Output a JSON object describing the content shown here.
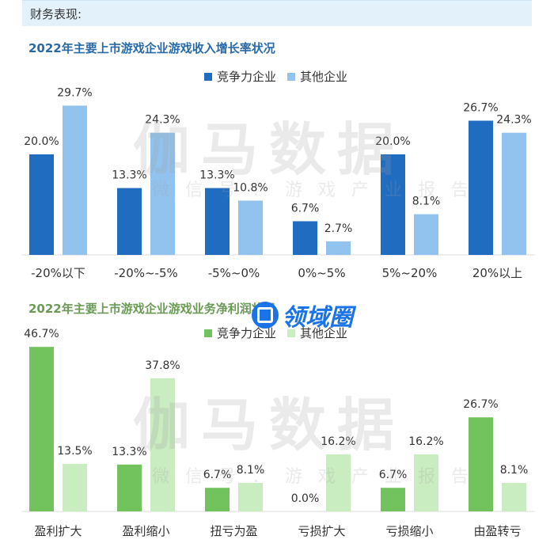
{
  "header": {
    "title": "财务表现:"
  },
  "chart1": {
    "title": "2022年主要上市游戏企业游戏收入增长率状况",
    "legend": [
      "竞争力企业",
      "其他企业"
    ]
  },
  "chart2": {
    "title": "2022年主要上市游戏企业游戏业务净利润状况",
    "legend": [
      "竞争力企业",
      "其他企业"
    ]
  },
  "watermark": {
    "big": "伽马数据",
    "small": "微信号：游戏产业报告"
  },
  "logo": {
    "text": "领域圈"
  },
  "colors": {
    "c1_primary": "#1f6cc0",
    "c1_secondary": "#92c3ee",
    "c2_primary": "#72c25e",
    "c2_secondary": "#c9ecc0",
    "header_bg": "#e3f1fb"
  },
  "chart_data": [
    {
      "type": "bar",
      "title": "2022年主要上市游戏企业游戏收入增长率状况",
      "categories": [
        "-20%以下",
        "-20%~-5%",
        "-5%~0%",
        "0%~5%",
        "5%~20%",
        "20%以上"
      ],
      "series": [
        {
          "name": "竞争力企业",
          "values": [
            20.0,
            13.3,
            13.3,
            6.7,
            20.0,
            26.7
          ],
          "labels": [
            "20.0%",
            "13.3%",
            "13.3%",
            "6.7%",
            "20.0%",
            "26.7%"
          ]
        },
        {
          "name": "其他企业",
          "values": [
            29.7,
            24.3,
            10.8,
            2.7,
            8.1,
            24.3
          ],
          "labels": [
            "29.7%",
            "24.3%",
            "10.8%",
            "2.7%",
            "8.1%",
            "24.3%"
          ]
        }
      ],
      "legend_position": "top-right"
    },
    {
      "type": "bar",
      "title": "2022年主要上市游戏企业游戏业务净利润状况",
      "categories": [
        "盈利扩大",
        "盈利缩小",
        "扭亏为盈",
        "亏损扩大",
        "亏损缩小",
        "由盈转亏"
      ],
      "series": [
        {
          "name": "竞争力企业",
          "values": [
            46.7,
            13.3,
            6.7,
            0.0,
            6.7,
            26.7
          ],
          "labels": [
            "46.7%",
            "13.3%",
            "6.7%",
            "0.0%",
            "6.7%",
            "26.7%"
          ]
        },
        {
          "name": "其他企业",
          "values": [
            13.5,
            37.8,
            8.1,
            16.2,
            16.2,
            8.1
          ],
          "labels": [
            "13.5%",
            "37.8%",
            "8.1%",
            "16.2%",
            "16.2%",
            "8.1%"
          ]
        }
      ],
      "legend_position": "top-right"
    }
  ]
}
